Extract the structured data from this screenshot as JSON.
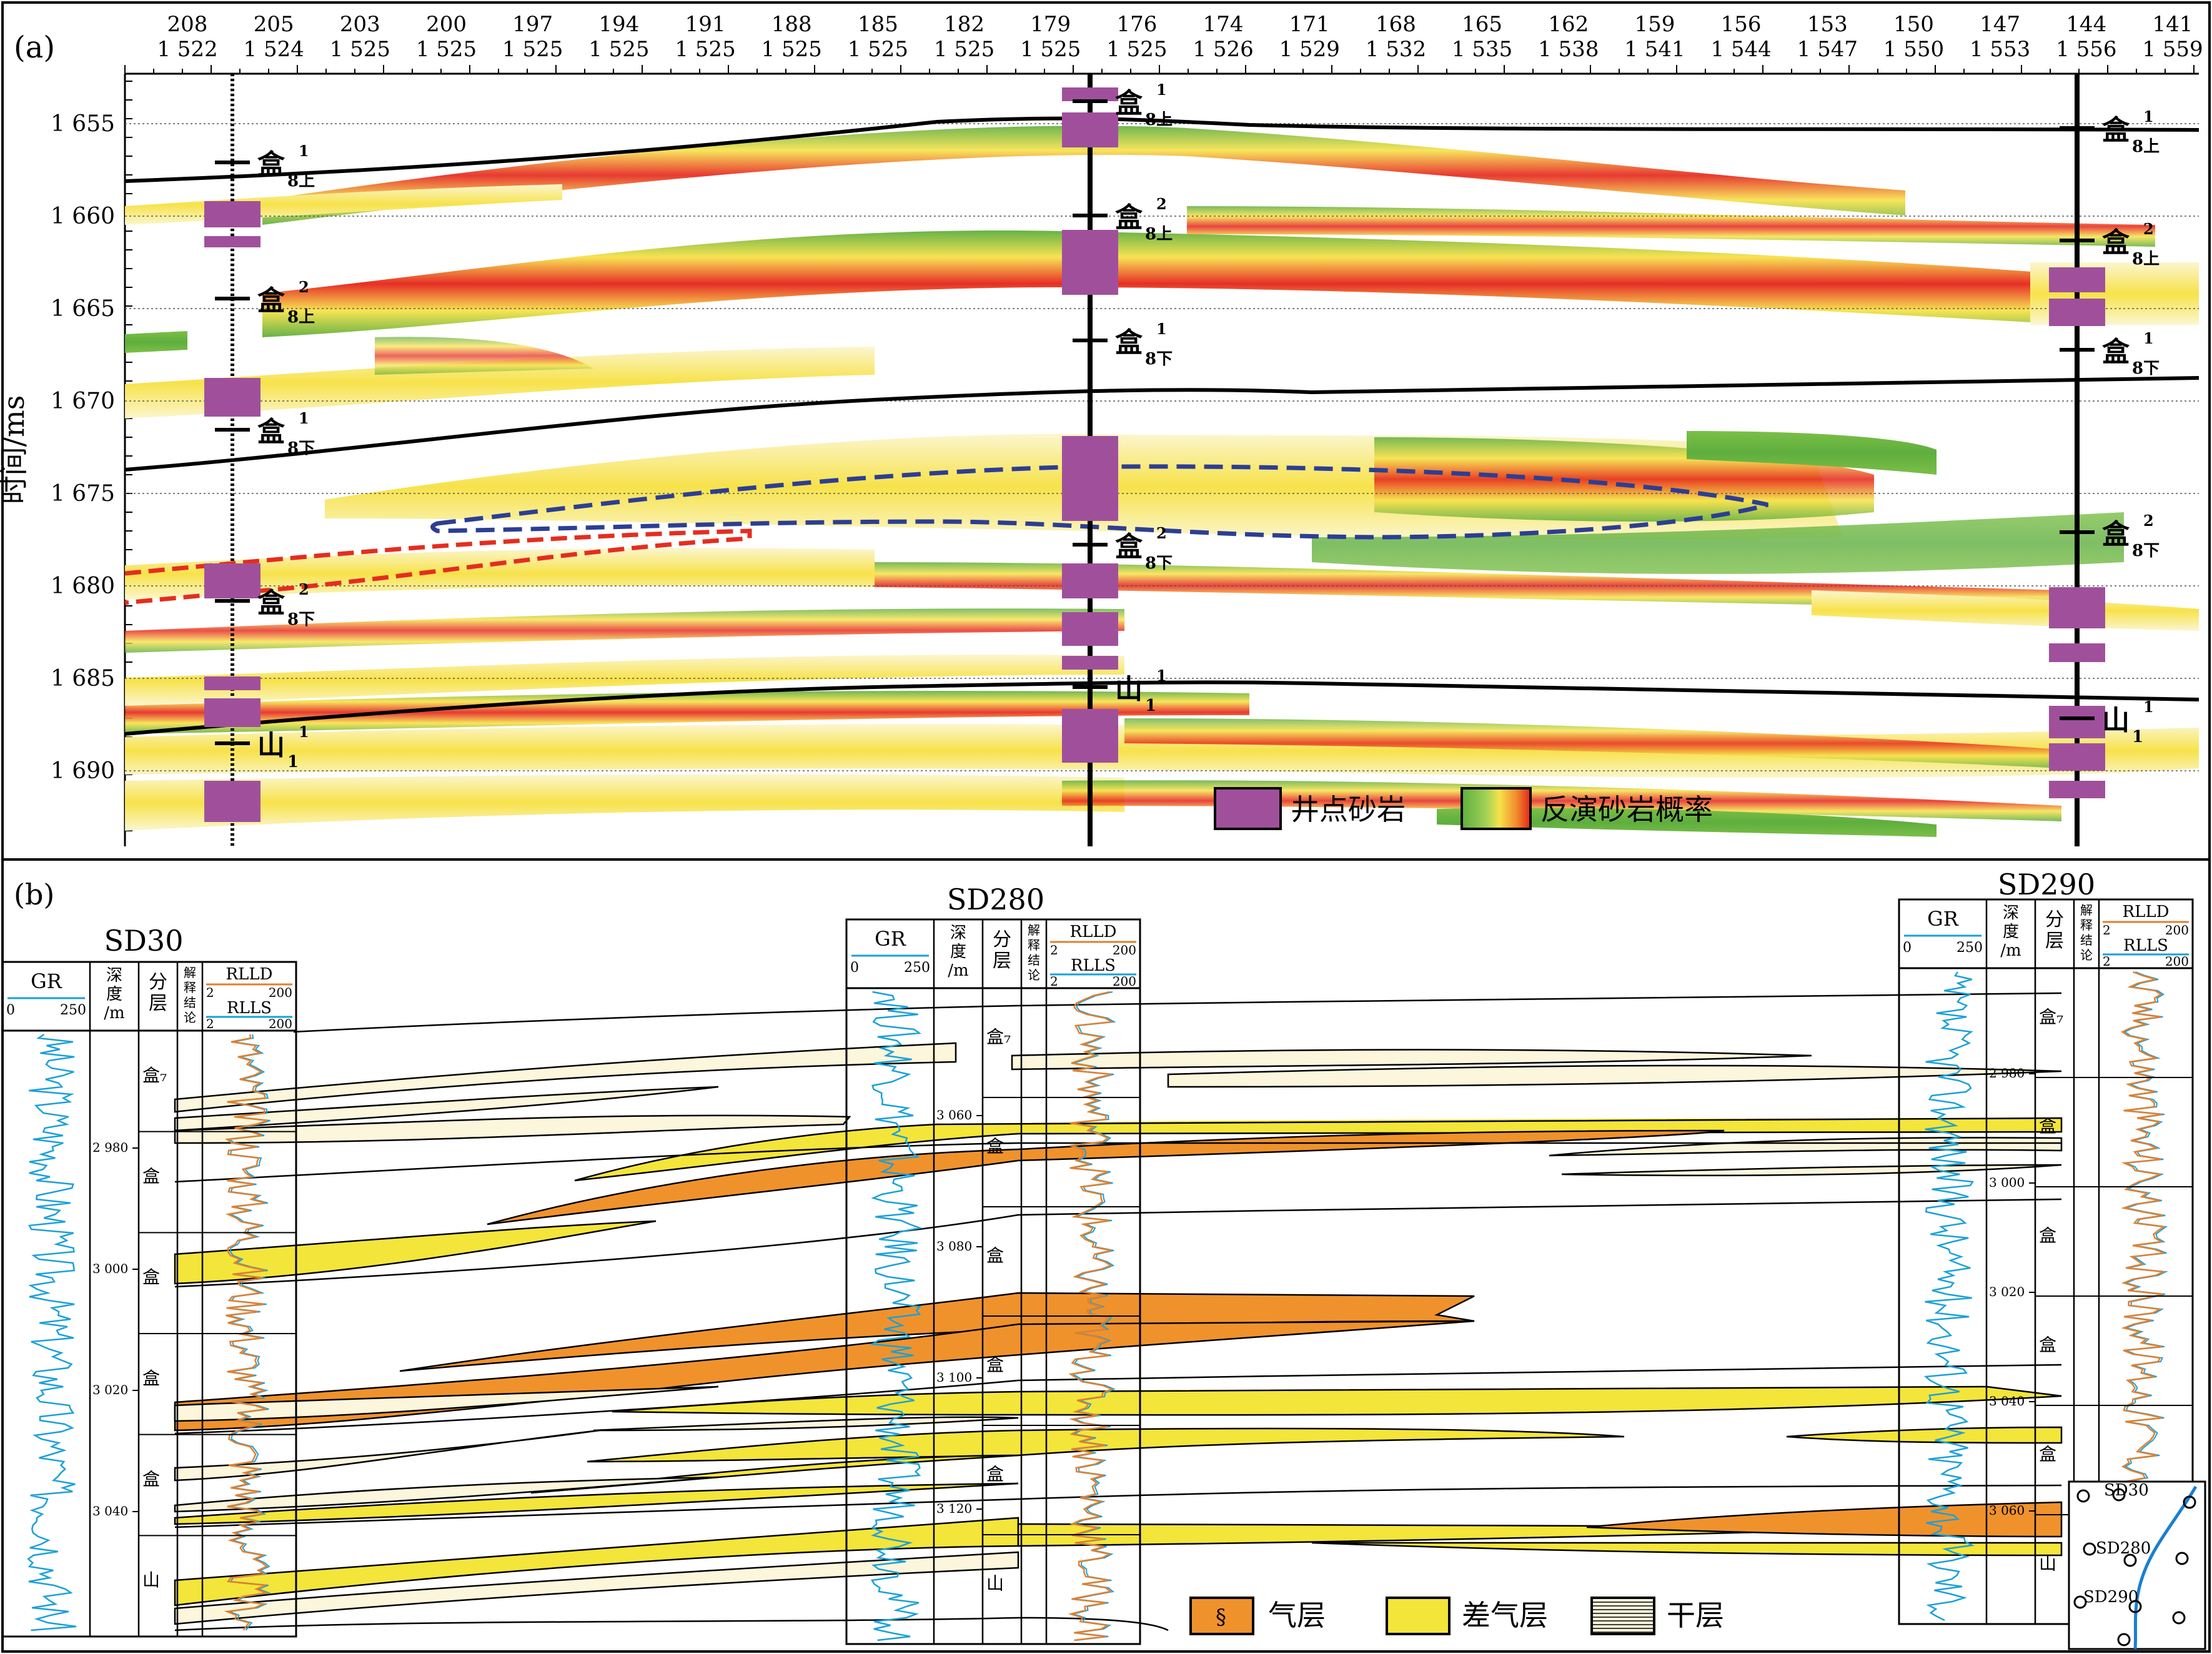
{
  "panel_a": {
    "label": "(a)",
    "y_axis_label": "时间/ms",
    "top_axis_row1": [
      "208",
      "205",
      "203",
      "200",
      "197",
      "194",
      "191",
      "188",
      "185",
      "182",
      "179",
      "176",
      "174",
      "171",
      "168",
      "165",
      "162",
      "159",
      "156",
      "153",
      "150",
      "147",
      "144",
      "141"
    ],
    "top_axis_row2": [
      "1 522",
      "1 524",
      "1 525",
      "1 525",
      "1 525",
      "1 525",
      "1 525",
      "1 525",
      "1 525",
      "1 525",
      "1 525",
      "1 525",
      "1 526",
      "1 529",
      "1 532",
      "1 535",
      "1 538",
      "1 541",
      "1 544",
      "1 547",
      "1 550",
      "1 553",
      "1 556",
      "1 559"
    ],
    "y_ticks": [
      "1 655",
      "1 660",
      "1 665",
      "1 670",
      "1 675",
      "1 680",
      "1 685",
      "1 690"
    ],
    "legend": {
      "well_sand": "井点砂岩",
      "inversion_prob": "反演砂岩概率"
    },
    "layer_label": {
      "he": "盒",
      "shan": "山",
      "upper": "8上",
      "lower": "8下",
      "sub1": "1",
      "sub2": "2",
      "shan_sub": "1",
      "shan_sup": "1"
    },
    "colors": {
      "sand": "#a0509b",
      "green": "#5fae3e",
      "yellow": "#f7e24a",
      "red": "#e5231b",
      "blue_dash": "#2c3e94",
      "red_dash": "#e52d1f"
    }
  },
  "panel_b": {
    "label": "(b)",
    "wells": [
      {
        "name": "SD30",
        "gr_label": "GR",
        "gr_min": "0",
        "gr_max": "250",
        "depth_label": [
          "深",
          "度",
          "/m"
        ],
        "layer_label": [
          "分",
          "层"
        ],
        "interp_label": [
          "解",
          "释",
          "结",
          "论"
        ],
        "rlld": "RLLD",
        "rlls": "RLLS",
        "res_min": "2",
        "res_max": "200",
        "depths": [
          "2 980",
          "3 000",
          "3 020",
          "3 040"
        ]
      },
      {
        "name": "SD280",
        "gr_label": "GR",
        "gr_min": "0",
        "gr_max": "250",
        "depth_label": [
          "深",
          "度",
          "/m"
        ],
        "layer_label": [
          "分",
          "层"
        ],
        "interp_label": [
          "解",
          "释",
          "结",
          "论"
        ],
        "rlld": "RLLD",
        "rlls": "RLLS",
        "res_min": "2",
        "res_max": "200",
        "depths": [
          "3 060",
          "3 080",
          "3 100",
          "3 120"
        ]
      },
      {
        "name": "SD290",
        "gr_label": "GR",
        "gr_min": "0",
        "gr_max": "250",
        "depth_label": [
          "深",
          "度",
          "/m"
        ],
        "layer_label": [
          "分",
          "层"
        ],
        "interp_label": [
          "解",
          "释",
          "结",
          "论"
        ],
        "rlld": "RLLD",
        "rlls": "RLLS",
        "res_min": "2",
        "res_max": "200",
        "depths": [
          "2 980",
          "3 000",
          "3 020",
          "3 040",
          "3 060"
        ]
      }
    ],
    "legend": {
      "gas": "气层",
      "poor_gas": "差气层",
      "dry": "干层"
    },
    "inset": {
      "wells": [
        "SD30",
        "SD280",
        "SD290"
      ]
    },
    "layer_codes": {
      "he7": "盒₇",
      "he": "盒",
      "shan": "山"
    },
    "colors": {
      "gas": "#f0922c",
      "poor_gas": "#f4e53a",
      "dry": "#fbf6dc",
      "gr": "#1aa0d8",
      "rlld": "#e08030",
      "rlls": "#1aa0d8",
      "inset_line": "#1a7fd0"
    }
  }
}
